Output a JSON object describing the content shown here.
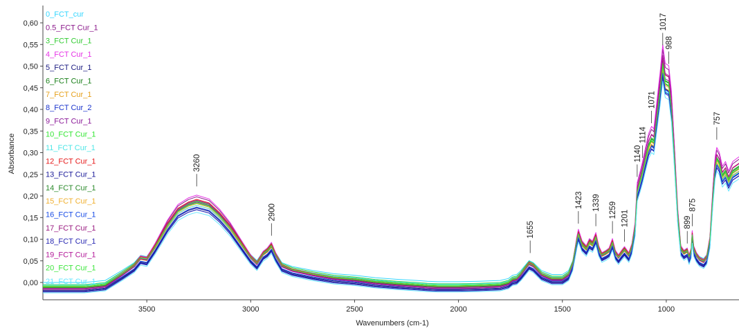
{
  "chart_data": {
    "type": "line",
    "title": "",
    "xlabel": "Wavenumbers (cm-1)",
    "ylabel": "Absorbance",
    "xlim": [
      4000,
      650
    ],
    "ylim": [
      -0.04,
      0.64
    ],
    "x_reversed": true,
    "x_ticks": [
      "3500",
      "3000",
      "2500",
      "2000",
      "1500",
      "1000"
    ],
    "y_ticks": [
      "0,00",
      "0,05",
      "0,10",
      "0,15",
      "0,20",
      "0,25",
      "0,30",
      "0,35",
      "0,40",
      "0,45",
      "0,50",
      "0,55",
      "0,60"
    ],
    "legend_position": "left",
    "series": [
      {
        "name": "0_FCT_cur",
        "color": "#33d6ff",
        "scale": 0.92,
        "offset": 0.0
      },
      {
        "name": "0.5_FCT Cur_1",
        "color": "#8b1a8b",
        "scale": 1.06,
        "offset": -0.012
      },
      {
        "name": "3_FCT Cur_1",
        "color": "#33cc33",
        "scale": 0.98,
        "offset": -0.005
      },
      {
        "name": "4_FCT Cur_1",
        "color": "#e633e6",
        "scale": 1.08,
        "offset": -0.012
      },
      {
        "name": "5_FCT Cur_1",
        "color": "#1a1a80",
        "scale": 0.97,
        "offset": -0.018
      },
      {
        "name": "6_FCT Cur_1",
        "color": "#1a801a",
        "scale": 0.99,
        "offset": -0.01
      },
      {
        "name": "7_FCT Cur_1",
        "color": "#e6a01a",
        "scale": 0.96,
        "offset": -0.012
      },
      {
        "name": "8_FCT Cur_2",
        "color": "#1a33cc",
        "scale": 0.95,
        "offset": -0.02
      },
      {
        "name": "9_FCT Cur_1",
        "color": "#8b1a99",
        "scale": 1.01,
        "offset": -0.014
      },
      {
        "name": "10_FCT Cur_1",
        "color": "#33e633",
        "scale": 0.99,
        "offset": -0.008
      },
      {
        "name": "11_FCT Cur_1",
        "color": "#4de6e6",
        "scale": 0.93,
        "offset": -0.006
      },
      {
        "name": "12_FCT Cur_1",
        "color": "#e61a1a",
        "scale": 1.02,
        "offset": -0.01
      },
      {
        "name": "13_FCT Cur_1",
        "color": "#1a1a99",
        "scale": 0.97,
        "offset": -0.02
      },
      {
        "name": "14_FCT Cur_1",
        "color": "#2d8b2d",
        "scale": 0.98,
        "offset": -0.012
      },
      {
        "name": "15_FCT Cur_1",
        "color": "#f0b030",
        "scale": 0.97,
        "offset": -0.01
      },
      {
        "name": "16_FCT Cur_1",
        "color": "#1a4de6",
        "scale": 0.96,
        "offset": -0.016
      },
      {
        "name": "17_FCT Cur_1",
        "color": "#991a80",
        "scale": 1.03,
        "offset": -0.014
      },
      {
        "name": "18_FCT Cur_1",
        "color": "#2a2ab3",
        "scale": 0.96,
        "offset": -0.022
      },
      {
        "name": "19_FCT Cur_1",
        "color": "#b31a99",
        "scale": 1.04,
        "offset": -0.016
      },
      {
        "name": "20_FCT Cur_1",
        "color": "#3de63d",
        "scale": 0.98,
        "offset": -0.01
      },
      {
        "name": "21_FCT Cur_1",
        "color": "#66e6ff",
        "scale": 0.94,
        "offset": -0.024
      }
    ],
    "base_profile": [
      [
        4000,
        0.0
      ],
      [
        3800,
        0.0
      ],
      [
        3700,
        0.005
      ],
      [
        3620,
        0.03
      ],
      [
        3560,
        0.05
      ],
      [
        3530,
        0.068
      ],
      [
        3500,
        0.065
      ],
      [
        3460,
        0.095
      ],
      [
        3400,
        0.145
      ],
      [
        3350,
        0.178
      ],
      [
        3300,
        0.192
      ],
      [
        3260,
        0.198
      ],
      [
        3200,
        0.19
      ],
      [
        3150,
        0.168
      ],
      [
        3100,
        0.14
      ],
      [
        3050,
        0.105
      ],
      [
        3000,
        0.07
      ],
      [
        2970,
        0.055
      ],
      [
        2940,
        0.078
      ],
      [
        2920,
        0.085
      ],
      [
        2900,
        0.097
      ],
      [
        2880,
        0.075
      ],
      [
        2850,
        0.05
      ],
      [
        2800,
        0.04
      ],
      [
        2700,
        0.03
      ],
      [
        2600,
        0.022
      ],
      [
        2500,
        0.018
      ],
      [
        2400,
        0.012
      ],
      [
        2300,
        0.008
      ],
      [
        2200,
        0.005
      ],
      [
        2150,
        0.003
      ],
      [
        2100,
        0.002
      ],
      [
        2000,
        0.002
      ],
      [
        1900,
        0.003
      ],
      [
        1800,
        0.005
      ],
      [
        1760,
        0.01
      ],
      [
        1740,
        0.018
      ],
      [
        1720,
        0.02
      ],
      [
        1700,
        0.03
      ],
      [
        1660,
        0.055
      ],
      [
        1640,
        0.05
      ],
      [
        1600,
        0.03
      ],
      [
        1550,
        0.02
      ],
      [
        1500,
        0.02
      ],
      [
        1470,
        0.03
      ],
      [
        1450,
        0.055
      ],
      [
        1430,
        0.11
      ],
      [
        1423,
        0.125
      ],
      [
        1405,
        0.1
      ],
      [
        1385,
        0.09
      ],
      [
        1370,
        0.105
      ],
      [
        1355,
        0.1
      ],
      [
        1339,
        0.118
      ],
      [
        1325,
        0.09
      ],
      [
        1310,
        0.075
      ],
      [
        1290,
        0.08
      ],
      [
        1275,
        0.085
      ],
      [
        1259,
        0.105
      ],
      [
        1245,
        0.08
      ],
      [
        1230,
        0.07
      ],
      [
        1215,
        0.08
      ],
      [
        1201,
        0.088
      ],
      [
        1180,
        0.075
      ],
      [
        1165,
        0.095
      ],
      [
        1150,
        0.14
      ],
      [
        1140,
        0.225
      ],
      [
        1125,
        0.25
      ],
      [
        1114,
        0.27
      ],
      [
        1100,
        0.3
      ],
      [
        1085,
        0.33
      ],
      [
        1071,
        0.345
      ],
      [
        1060,
        0.34
      ],
      [
        1045,
        0.4
      ],
      [
        1030,
        0.46
      ],
      [
        1017,
        0.52
      ],
      [
        1005,
        0.48
      ],
      [
        988,
        0.475
      ],
      [
        975,
        0.42
      ],
      [
        960,
        0.3
      ],
      [
        945,
        0.17
      ],
      [
        930,
        0.09
      ],
      [
        915,
        0.08
      ],
      [
        899,
        0.085
      ],
      [
        890,
        0.07
      ],
      [
        880,
        0.085
      ],
      [
        875,
        0.122
      ],
      [
        868,
        0.09
      ],
      [
        855,
        0.075
      ],
      [
        840,
        0.065
      ],
      [
        820,
        0.06
      ],
      [
        805,
        0.07
      ],
      [
        790,
        0.11
      ],
      [
        775,
        0.22
      ],
      [
        765,
        0.28
      ],
      [
        757,
        0.3
      ],
      [
        745,
        0.29
      ],
      [
        730,
        0.26
      ],
      [
        715,
        0.27
      ],
      [
        700,
        0.25
      ],
      [
        680,
        0.27
      ],
      [
        665,
        0.275
      ],
      [
        650,
        0.28
      ]
    ],
    "peak_labels": [
      {
        "label": "3260",
        "x": 3260,
        "y": 0.222
      },
      {
        "label": "2900",
        "x": 2900,
        "y": 0.108
      },
      {
        "label": "1655",
        "x": 1655,
        "y": 0.068
      },
      {
        "label": "1423",
        "x": 1423,
        "y": 0.136
      },
      {
        "label": "1339",
        "x": 1339,
        "y": 0.13
      },
      {
        "label": "1259",
        "x": 1259,
        "y": 0.113
      },
      {
        "label": "1201",
        "x": 1201,
        "y": 0.094
      },
      {
        "label": "1140",
        "x": 1140,
        "y": 0.244
      },
      {
        "label": "1114",
        "x": 1114,
        "y": 0.288
      },
      {
        "label": "1071",
        "x": 1071,
        "y": 0.368
      },
      {
        "label": "1017",
        "x": 1017,
        "y": 0.548
      },
      {
        "label": "988",
        "x": 988,
        "y": 0.505
      },
      {
        "label": "899",
        "x": 899,
        "y": 0.09
      },
      {
        "label": "875",
        "x": 875,
        "y": 0.13
      },
      {
        "label": "757",
        "x": 757,
        "y": 0.33
      }
    ]
  }
}
